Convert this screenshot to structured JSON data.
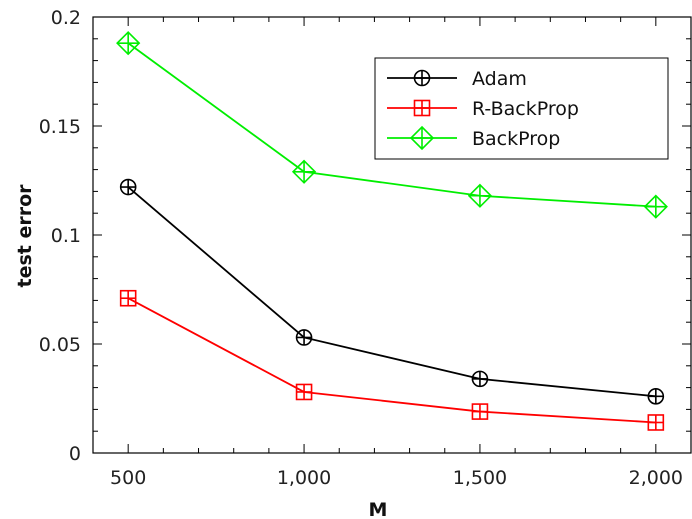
{
  "chart_data": {
    "type": "line",
    "xlabel": "M",
    "ylabel": "test error",
    "x": [
      500,
      1000,
      1500,
      2000
    ],
    "x_tick_labels": [
      "500",
      "1,000",
      "1,500",
      "2,000"
    ],
    "xlim": [
      400,
      2100
    ],
    "ylim": [
      0,
      0.2
    ],
    "y_ticks": [
      0,
      0.05,
      0.1,
      0.15,
      0.2
    ],
    "y_tick_labels": [
      "0",
      "0.05",
      "0.1",
      "0.15",
      "0.2"
    ],
    "grid": false,
    "legend_position": "top-right",
    "series": [
      {
        "name": "Adam",
        "color": "#000000",
        "marker": "circle-plus",
        "values": [
          0.122,
          0.053,
          0.034,
          0.026
        ]
      },
      {
        "name": "R-BackProp",
        "color": "#ff0000",
        "marker": "square-plus",
        "values": [
          0.071,
          0.028,
          0.019,
          0.014
        ]
      },
      {
        "name": "BackProp",
        "color": "#00ee00",
        "marker": "diamond-plus",
        "values": [
          0.188,
          0.129,
          0.118,
          0.113
        ]
      }
    ]
  }
}
